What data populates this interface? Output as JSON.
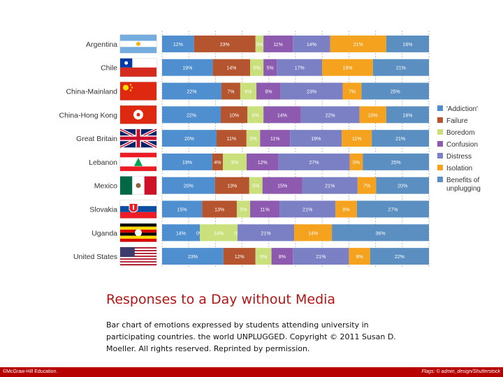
{
  "chart_data": {
    "type": "bar",
    "stacked": true,
    "orientation": "horizontal",
    "percent_suffix": "%",
    "categories": [
      "Argentina",
      "Chile",
      "China-Mainland",
      "China-Hong Kong",
      "Great Britain",
      "Lebanon",
      "Mexico",
      "Slovakia",
      "Uganda",
      "United States"
    ],
    "series": [
      {
        "name": "'Addiction'",
        "color": "#4f8fcf",
        "values": [
          12,
          19,
          22,
          22,
          20,
          19,
          20,
          15,
          14,
          23
        ]
      },
      {
        "name": "Failure",
        "color": "#b5552f",
        "values": [
          23,
          14,
          7,
          10,
          11,
          4,
          13,
          13,
          0,
          12
        ]
      },
      {
        "name": "Boredom",
        "color": "#c9e07d",
        "values": [
          3,
          5,
          6,
          6,
          5,
          9,
          5,
          5,
          14,
          6
        ]
      },
      {
        "name": "Confusion",
        "color": "#8e5ab0",
        "values": [
          11,
          5,
          9,
          14,
          11,
          12,
          15,
          11,
          0,
          8
        ]
      },
      {
        "name": "Distress",
        "color": "#7b80c4",
        "values": [
          14,
          17,
          23,
          22,
          19,
          27,
          21,
          21,
          21,
          21
        ]
      },
      {
        "name": "Isolation",
        "color": "#f5a31f",
        "values": [
          21,
          19,
          7,
          10,
          11,
          5,
          7,
          8,
          14,
          8
        ]
      },
      {
        "name": "Benefits of unplugging",
        "color": "#5b8fc2",
        "values": [
          16,
          21,
          25,
          16,
          21,
          25,
          20,
          27,
          36,
          22
        ]
      }
    ],
    "legend_position": "right"
  },
  "figure": {
    "title": "Responses to a Day without Media",
    "caption": "Bar chart of emotions expressed by students attending university in participating countries. the world UNPLUGGED. Copyright © 2011 Susan D. Moeller. All rights reserved. Reprinted by permission."
  },
  "footer": {
    "left": "©McGraw-Hill Education.",
    "right": "Flags: © admin_design/Shutterstock"
  },
  "flags": [
    "argentina-flag",
    "chile-flag",
    "china-flag",
    "hong-kong-flag",
    "uk-flag",
    "lebanon-flag",
    "mexico-flag",
    "slovakia-flag",
    "uganda-flag",
    "us-flag"
  ]
}
